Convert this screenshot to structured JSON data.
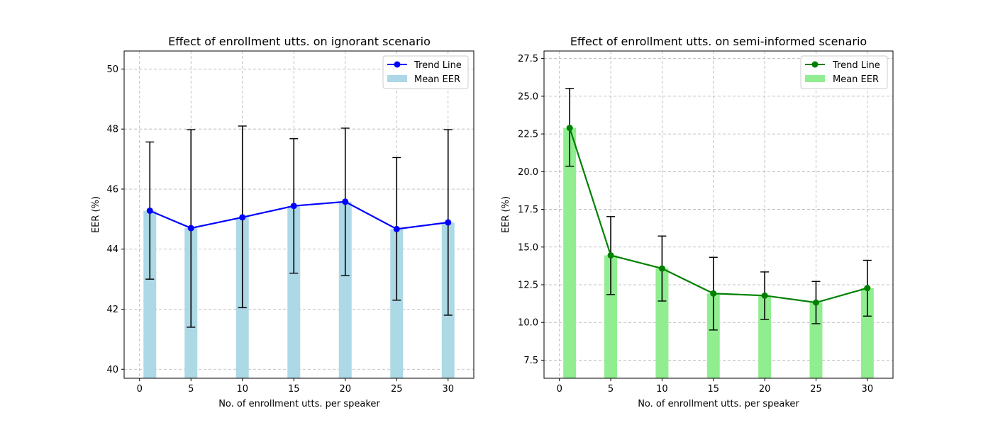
{
  "chart_data": [
    {
      "type": "bar",
      "title": "Effect of enrollment utts. on ignorant scenario",
      "xlabel": "No. of enrollment utts. per speaker",
      "ylabel": "EER (%)",
      "xlim": [
        -1.5,
        32.5
      ],
      "ylim": [
        39.7,
        50.6
      ],
      "xticks": [
        0,
        5,
        10,
        15,
        20,
        25,
        30
      ],
      "yticks": [
        40,
        42,
        44,
        46,
        48,
        50
      ],
      "tick_decimals": 0,
      "grid": true,
      "legend": "top-right",
      "bar_color": "#add8e6",
      "line_color": "#0000ff",
      "x": [
        1,
        5,
        10,
        15,
        20,
        25,
        30
      ],
      "series": [
        {
          "name": "Trend Line",
          "values": [
            45.28,
            44.7,
            45.06,
            45.44,
            45.58,
            44.67,
            44.89
          ]
        },
        {
          "name": "Mean EER",
          "values": [
            45.28,
            44.7,
            45.06,
            45.44,
            45.58,
            44.67,
            44.89
          ]
        }
      ],
      "error_low": [
        43.0,
        41.4,
        42.05,
        43.2,
        43.12,
        42.3,
        41.8
      ],
      "error_high": [
        47.57,
        47.98,
        48.1,
        47.68,
        48.03,
        47.05,
        47.98
      ]
    },
    {
      "type": "bar",
      "title": "Effect of enrollment utts. on semi-informed scenario",
      "xlabel": "No. of enrollment utts. per speaker",
      "ylabel": "EER (%)",
      "xlim": [
        -1.5,
        32.5
      ],
      "ylim": [
        6.3,
        28.0
      ],
      "xticks": [
        0,
        5,
        10,
        15,
        20,
        25,
        30
      ],
      "yticks": [
        7.5,
        10.0,
        12.5,
        15.0,
        17.5,
        20.0,
        22.5,
        25.0,
        27.5
      ],
      "tick_decimals": 1,
      "grid": true,
      "legend": "top-right",
      "bar_color": "#90ee90",
      "line_color": "#008000",
      "x": [
        1,
        5,
        10,
        15,
        20,
        25,
        30
      ],
      "series": [
        {
          "name": "Trend Line",
          "values": [
            22.9,
            14.45,
            13.58,
            11.92,
            11.78,
            11.32,
            12.28
          ]
        },
        {
          "name": "Mean EER",
          "values": [
            22.9,
            14.45,
            13.58,
            11.92,
            11.78,
            11.32,
            12.28
          ]
        }
      ],
      "error_low": [
        20.36,
        11.85,
        11.42,
        9.5,
        10.2,
        9.92,
        10.42
      ],
      "error_high": [
        25.52,
        17.02,
        15.73,
        14.32,
        13.35,
        12.72,
        14.12
      ]
    }
  ]
}
